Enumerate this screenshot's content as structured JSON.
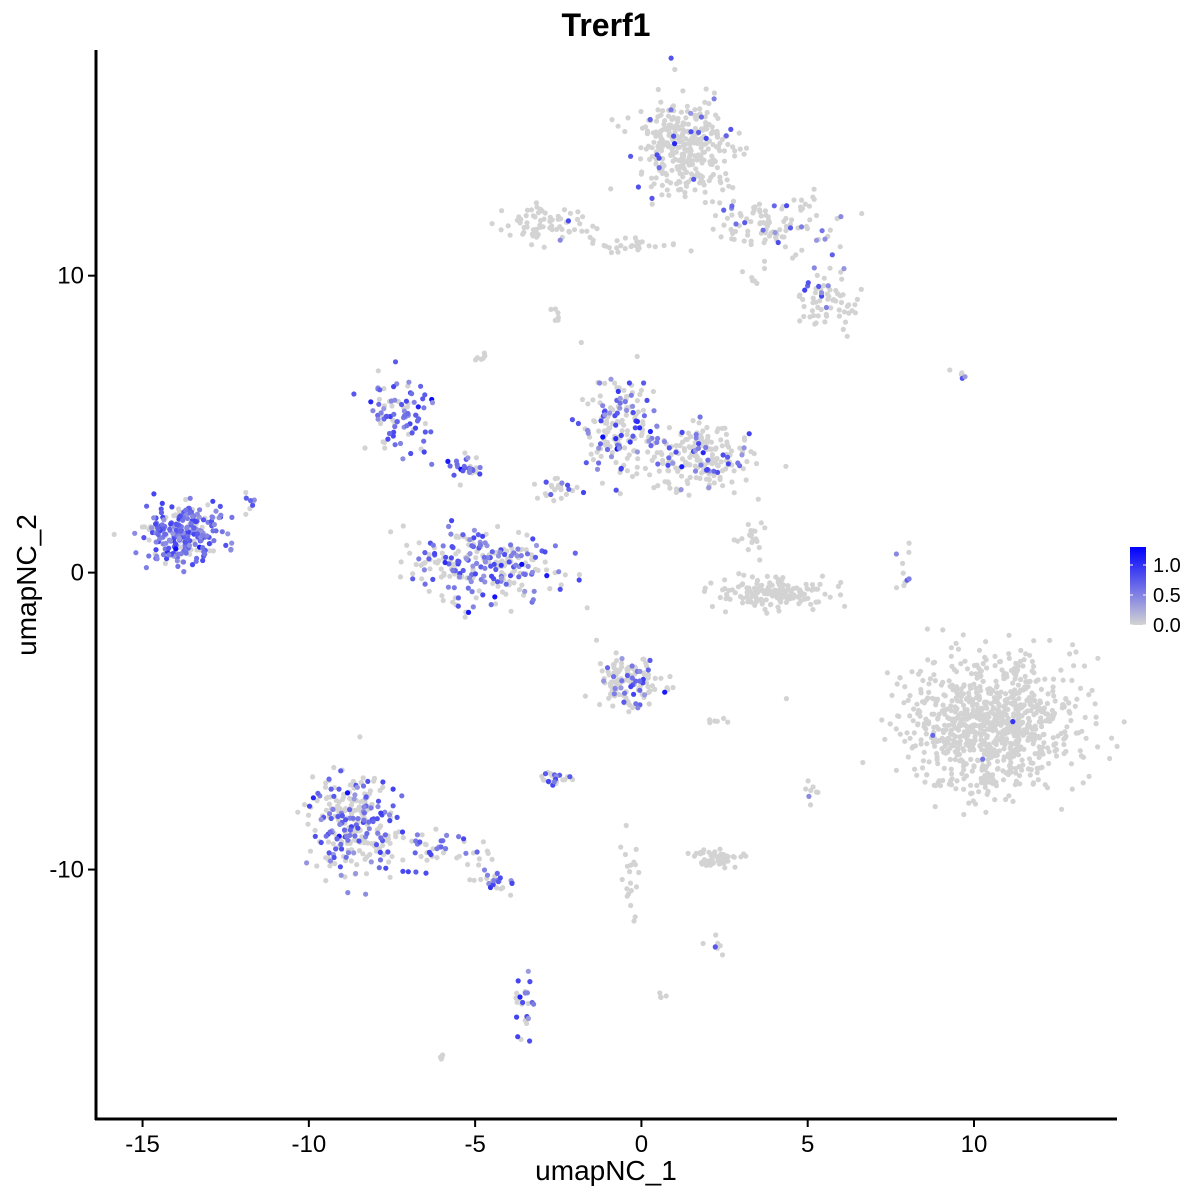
{
  "chart_data": {
    "type": "scatter",
    "title": "Trerf1",
    "xlabel": "umapNC_1",
    "ylabel": "umapNC_2",
    "xlim": [
      -16.4,
      14.3
    ],
    "ylim": [
      -18.4,
      17.6
    ],
    "x_ticks": [
      -15,
      -10,
      -5,
      0,
      5,
      10
    ],
    "y_ticks": [
      -10,
      0,
      10
    ],
    "x_tick_labels": [
      "-15",
      "-10",
      "-5",
      "0",
      "5",
      "10"
    ],
    "y_tick_labels": [
      "-10",
      "0",
      "10"
    ],
    "grid": false,
    "legend_position": "right",
    "color_scale": {
      "low_color": "#d3d3d3",
      "high_color": "#0000ff",
      "min": 0.0,
      "max": 1.3,
      "ticks": [
        0.0,
        0.5,
        1.0
      ],
      "tick_labels": [
        "0.0",
        "0.5",
        "1.0"
      ]
    },
    "clusters": [
      {
        "center": [
          -13.8,
          1.3
        ],
        "spread": [
          0.7,
          0.6
        ],
        "n": 260,
        "expr_rate": 0.75
      },
      {
        "center": [
          -11.8,
          2.5
        ],
        "spread": [
          0.3,
          0.3
        ],
        "n": 8,
        "expr_rate": 0.6
      },
      {
        "center": [
          -7.2,
          5.2
        ],
        "spread": [
          0.6,
          0.8
        ],
        "n": 90,
        "expr_rate": 0.75
      },
      {
        "center": [
          -4.8,
          0.2
        ],
        "spread": [
          1.4,
          0.8
        ],
        "n": 260,
        "expr_rate": 0.45
      },
      {
        "center": [
          -5.2,
          3.6
        ],
        "spread": [
          0.5,
          0.3
        ],
        "n": 30,
        "expr_rate": 0.7
      },
      {
        "center": [
          -4.8,
          7.3
        ],
        "spread": [
          0.2,
          0.2
        ],
        "n": 6,
        "expr_rate": 0.3
      },
      {
        "center": [
          -0.7,
          4.9
        ],
        "spread": [
          0.7,
          1.0
        ],
        "n": 170,
        "expr_rate": 0.4
      },
      {
        "center": [
          1.7,
          3.9
        ],
        "spread": [
          1.0,
          0.7
        ],
        "n": 200,
        "expr_rate": 0.2
      },
      {
        "center": [
          -2.5,
          2.8
        ],
        "spread": [
          0.4,
          0.3
        ],
        "n": 25,
        "expr_rate": 0.3
      },
      {
        "center": [
          1.3,
          14.3
        ],
        "spread": [
          0.9,
          1.0
        ],
        "n": 340,
        "expr_rate": 0.06
      },
      {
        "center": [
          4.0,
          11.8
        ],
        "spread": [
          1.1,
          0.6
        ],
        "n": 110,
        "expr_rate": 0.15
      },
      {
        "center": [
          5.6,
          9.3
        ],
        "spread": [
          0.5,
          0.6
        ],
        "n": 70,
        "expr_rate": 0.15
      },
      {
        "center": [
          -2.9,
          11.7
        ],
        "spread": [
          0.7,
          0.4
        ],
        "n": 70,
        "expr_rate": 0.05
      },
      {
        "center": [
          -0.4,
          11.0
        ],
        "spread": [
          1.2,
          0.15
        ],
        "n": 30,
        "expr_rate": 0.0
      },
      {
        "center": [
          -2.7,
          8.7
        ],
        "spread": [
          0.2,
          0.2
        ],
        "n": 6,
        "expr_rate": 0.0
      },
      {
        "center": [
          3.3,
          9.9
        ],
        "spread": [
          0.2,
          0.2
        ],
        "n": 6,
        "expr_rate": 0.0
      },
      {
        "center": [
          3.9,
          -0.7
        ],
        "spread": [
          1.0,
          0.3
        ],
        "n": 160,
        "expr_rate": 0.0
      },
      {
        "center": [
          3.3,
          1.1
        ],
        "spread": [
          0.3,
          0.4
        ],
        "n": 20,
        "expr_rate": 0.05
      },
      {
        "center": [
          10.5,
          -5.1
        ],
        "spread": [
          1.6,
          1.4
        ],
        "n": 900,
        "expr_rate": 0.005
      },
      {
        "center": [
          -0.4,
          -3.7
        ],
        "spread": [
          0.6,
          0.5
        ],
        "n": 130,
        "expr_rate": 0.2
      },
      {
        "center": [
          -8.7,
          -8.4
        ],
        "spread": [
          0.8,
          1.0
        ],
        "n": 260,
        "expr_rate": 0.35
      },
      {
        "center": [
          -6.5,
          -9.3
        ],
        "spread": [
          1.6,
          0.5
        ],
        "n": 70,
        "expr_rate": 0.5
      },
      {
        "center": [
          -4.4,
          -10.4
        ],
        "spread": [
          0.4,
          0.25
        ],
        "n": 25,
        "expr_rate": 0.6
      },
      {
        "center": [
          -3.5,
          -14.5
        ],
        "spread": [
          0.2,
          0.7
        ],
        "n": 25,
        "expr_rate": 0.5
      },
      {
        "center": [
          -2.6,
          -6.9
        ],
        "spread": [
          0.3,
          0.15
        ],
        "n": 25,
        "expr_rate": 0.4
      },
      {
        "center": [
          2.3,
          -9.6
        ],
        "spread": [
          0.5,
          0.2
        ],
        "n": 50,
        "expr_rate": 0.0
      },
      {
        "center": [
          -0.3,
          -10.5
        ],
        "spread": [
          0.3,
          1.0
        ],
        "n": 20,
        "expr_rate": 0.0
      },
      {
        "center": [
          2.3,
          -12.6
        ],
        "spread": [
          0.2,
          0.15
        ],
        "n": 8,
        "expr_rate": 0.3
      },
      {
        "center": [
          -6.0,
          -16.3
        ],
        "spread": [
          0.1,
          0.1
        ],
        "n": 4,
        "expr_rate": 0.0
      },
      {
        "center": [
          0.6,
          -14.2
        ],
        "spread": [
          0.1,
          0.1
        ],
        "n": 4,
        "expr_rate": 0.0
      },
      {
        "center": [
          5.1,
          -7.4
        ],
        "spread": [
          0.1,
          0.3
        ],
        "n": 8,
        "expr_rate": 0.3
      },
      {
        "center": [
          9.5,
          6.7
        ],
        "spread": [
          0.2,
          0.1
        ],
        "n": 5,
        "expr_rate": 0.4
      },
      {
        "center": [
          7.9,
          0.0
        ],
        "spread": [
          0.2,
          0.8
        ],
        "n": 10,
        "expr_rate": 0.1
      },
      {
        "center": [
          2.4,
          -5.0
        ],
        "spread": [
          0.3,
          0.1
        ],
        "n": 6,
        "expr_rate": 0.0
      }
    ]
  }
}
